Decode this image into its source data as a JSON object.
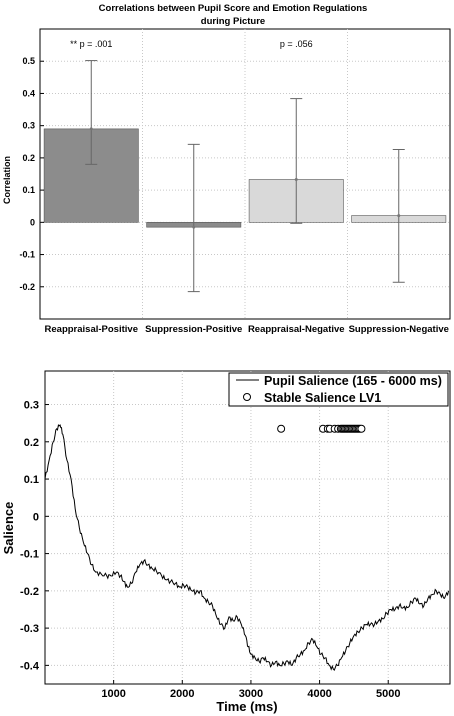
{
  "chart_data": [
    {
      "type": "bar",
      "title_line1": "Correlations between Pupil Score and Emotion Regulations",
      "title_line2": "during Picture",
      "ylabel": "Correlation",
      "xlabel": "",
      "ylim": [
        -0.3,
        0.6
      ],
      "yticks": [
        -0.2,
        -0.1,
        0,
        0.1,
        0.2,
        0.3,
        0.4,
        0.5
      ],
      "grid": true,
      "categories": [
        "Reappraisal-Positive",
        "Suppression-Positive",
        "Reappraisal-Negative",
        "Suppression-Negative"
      ],
      "values": [
        0.29,
        -0.015,
        0.133,
        0.021
      ],
      "error_low": [
        0.18,
        -0.215,
        -0.003,
        -0.186
      ],
      "error_high": [
        0.502,
        0.242,
        0.384,
        0.226
      ],
      "colors": [
        "#8c8c8c",
        "#8c8c8c",
        "#d9d9d9",
        "#d9d9d9"
      ],
      "annotations": [
        {
          "text": "** p = .001",
          "category": 0
        },
        {
          "text": "p = .056",
          "category": 2
        }
      ]
    },
    {
      "type": "line",
      "xlabel": "Time (ms)",
      "ylabel": "Salience",
      "xlim": [
        0,
        5900
      ],
      "ylim": [
        -0.45,
        0.39
      ],
      "xticks": [
        1000,
        2000,
        3000,
        4000,
        5000
      ],
      "yticks": [
        -0.4,
        -0.3,
        -0.2,
        -0.1,
        0,
        0.1,
        0.2,
        0.3
      ],
      "grid": true,
      "legend_position": "top-right",
      "series": [
        {
          "name": "Pupil Salience (165 - 6000 ms)",
          "color": "#000000",
          "points": [
            [
              0,
              0.1
            ],
            [
              60,
              0.15
            ],
            [
              120,
              0.2
            ],
            [
              170,
              0.235
            ],
            [
              220,
              0.245
            ],
            [
              260,
              0.22
            ],
            [
              320,
              0.15
            ],
            [
              380,
              0.1
            ],
            [
              440,
              0.02
            ],
            [
              500,
              -0.03
            ],
            [
              560,
              -0.07
            ],
            [
              620,
              -0.1
            ],
            [
              680,
              -0.13
            ],
            [
              740,
              -0.15
            ],
            [
              820,
              -0.155
            ],
            [
              900,
              -0.16
            ],
            [
              960,
              -0.16
            ],
            [
              1040,
              -0.15
            ],
            [
              1100,
              -0.16
            ],
            [
              1150,
              -0.175
            ],
            [
              1200,
              -0.19
            ],
            [
              1260,
              -0.18
            ],
            [
              1320,
              -0.15
            ],
            [
              1380,
              -0.13
            ],
            [
              1440,
              -0.12
            ],
            [
              1500,
              -0.13
            ],
            [
              1560,
              -0.14
            ],
            [
              1620,
              -0.145
            ],
            [
              1700,
              -0.16
            ],
            [
              1760,
              -0.17
            ],
            [
              1830,
              -0.175
            ],
            [
              1900,
              -0.18
            ],
            [
              1960,
              -0.19
            ],
            [
              2020,
              -0.185
            ],
            [
              2080,
              -0.19
            ],
            [
              2140,
              -0.2
            ],
            [
              2200,
              -0.205
            ],
            [
              2260,
              -0.2
            ],
            [
              2320,
              -0.22
            ],
            [
              2380,
              -0.23
            ],
            [
              2440,
              -0.24
            ],
            [
              2500,
              -0.27
            ],
            [
              2560,
              -0.29
            ],
            [
              2620,
              -0.3
            ],
            [
              2680,
              -0.27
            ],
            [
              2740,
              -0.28
            ],
            [
              2800,
              -0.27
            ],
            [
              2860,
              -0.29
            ],
            [
              2920,
              -0.32
            ],
            [
              2960,
              -0.35
            ],
            [
              3000,
              -0.37
            ],
            [
              3060,
              -0.38
            ],
            [
              3120,
              -0.39
            ],
            [
              3180,
              -0.38
            ],
            [
              3240,
              -0.39
            ],
            [
              3300,
              -0.4
            ],
            [
              3360,
              -0.39
            ],
            [
              3420,
              -0.4
            ],
            [
              3480,
              -0.395
            ],
            [
              3540,
              -0.39
            ],
            [
              3600,
              -0.4
            ],
            [
              3660,
              -0.38
            ],
            [
              3720,
              -0.37
            ],
            [
              3780,
              -0.36
            ],
            [
              3840,
              -0.34
            ],
            [
              3900,
              -0.33
            ],
            [
              3960,
              -0.35
            ],
            [
              4020,
              -0.37
            ],
            [
              4080,
              -0.38
            ],
            [
              4140,
              -0.4
            ],
            [
              4200,
              -0.41
            ],
            [
              4260,
              -0.4
            ],
            [
              4320,
              -0.38
            ],
            [
              4380,
              -0.36
            ],
            [
              4440,
              -0.34
            ],
            [
              4500,
              -0.32
            ],
            [
              4560,
              -0.31
            ],
            [
              4620,
              -0.3
            ],
            [
              4680,
              -0.29
            ],
            [
              4740,
              -0.29
            ],
            [
              4800,
              -0.29
            ],
            [
              4860,
              -0.28
            ],
            [
              4920,
              -0.275
            ],
            [
              4980,
              -0.26
            ],
            [
              5040,
              -0.25
            ],
            [
              5100,
              -0.25
            ],
            [
              5160,
              -0.24
            ],
            [
              5220,
              -0.245
            ],
            [
              5280,
              -0.245
            ],
            [
              5340,
              -0.23
            ],
            [
              5400,
              -0.22
            ],
            [
              5460,
              -0.235
            ],
            [
              5520,
              -0.24
            ],
            [
              5580,
              -0.22
            ],
            [
              5640,
              -0.21
            ],
            [
              5700,
              -0.2
            ],
            [
              5760,
              -0.21
            ],
            [
              5820,
              -0.22
            ],
            [
              5880,
              -0.2
            ]
          ]
        },
        {
          "name": "Stable Salience LV1",
          "marker": "circle-open",
          "y": 0.235,
          "x": [
            3440,
            4050,
            4120,
            4150,
            4220,
            4270,
            4310,
            4330,
            4350,
            4370,
            4390,
            4410,
            4430,
            4450,
            4470,
            4490,
            4510,
            4530,
            4550,
            4570,
            4590,
            4610
          ]
        }
      ]
    }
  ]
}
